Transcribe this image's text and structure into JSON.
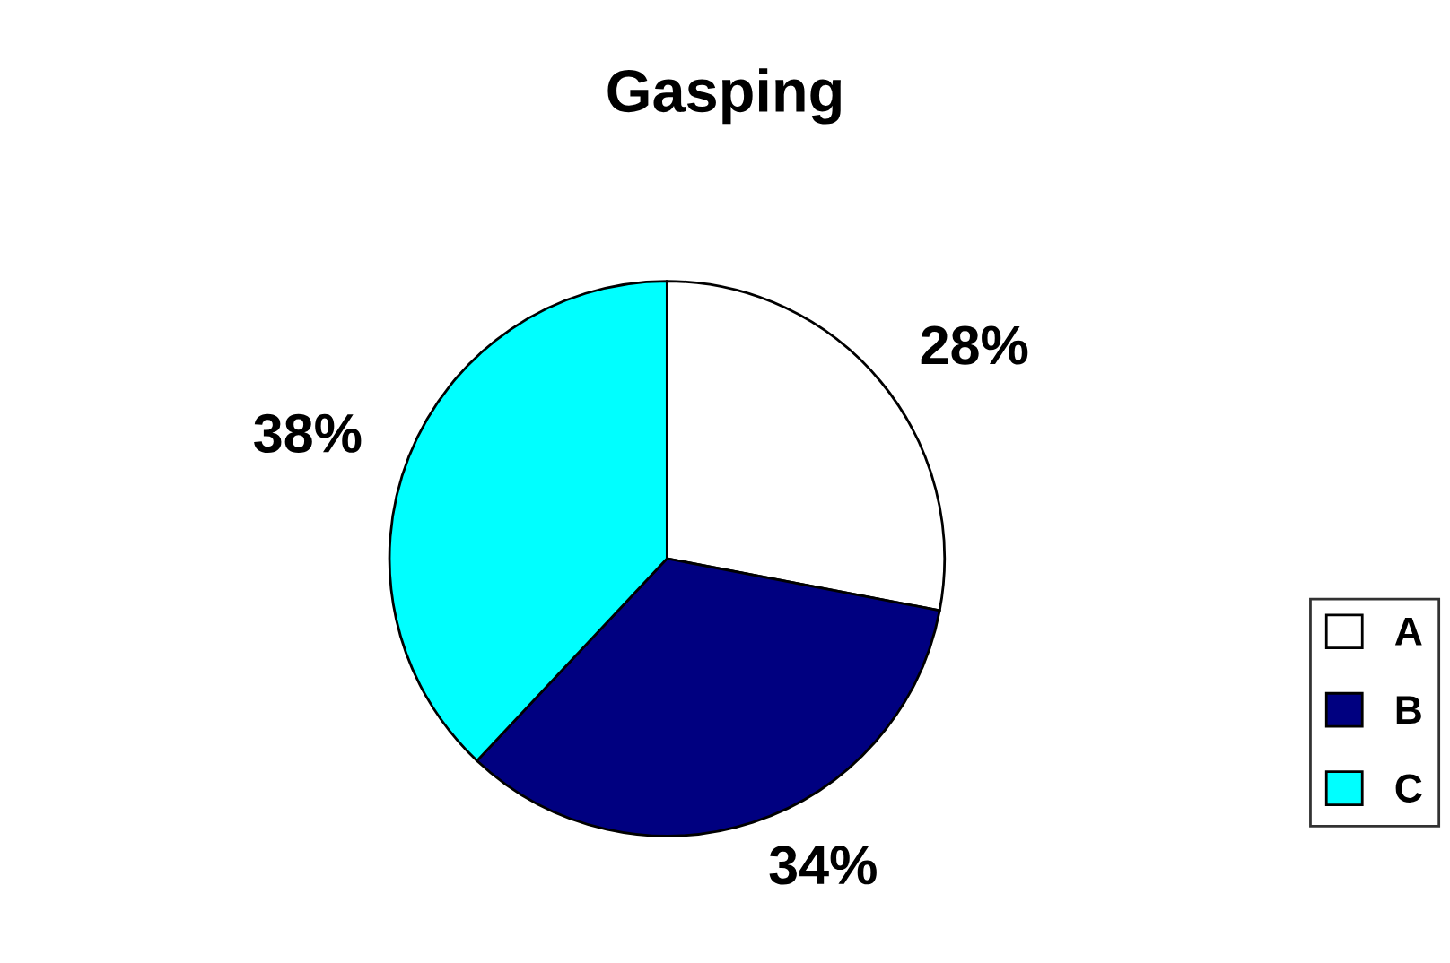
{
  "chart_data": {
    "type": "pie",
    "title": "Gasping",
    "categories": [
      "A",
      "B",
      "C"
    ],
    "values": [
      28,
      34,
      38
    ],
    "value_labels": [
      "28%",
      "34%",
      "38%"
    ],
    "colors": [
      "#ffffff",
      "#000080",
      "#00ffff"
    ],
    "legend": "right"
  }
}
